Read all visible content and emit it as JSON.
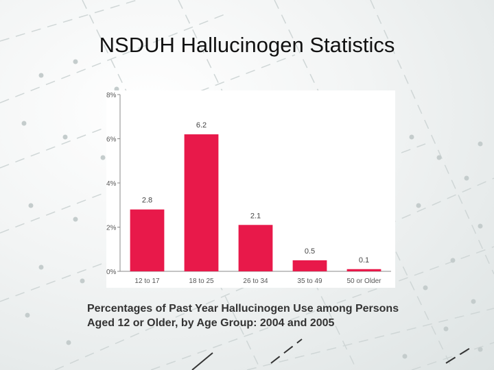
{
  "slide": {
    "title": "NSDUH Hallucinogen Statistics",
    "caption_line1": "Percentages of Past Year Hallucinogen Use among Persons",
    "caption_line2": "Aged 12 or Older, by Age Group: 2004 and 2005"
  },
  "colors": {
    "bar": "#e8194a",
    "axis": "#888888",
    "tick_text": "#555555"
  },
  "chart_data": {
    "type": "bar",
    "categories": [
      "12 to 17",
      "18 to 25",
      "26 to 34",
      "35 to 49",
      "50 or Older"
    ],
    "values": [
      2.8,
      6.2,
      2.1,
      0.5,
      0.1
    ],
    "data_labels": [
      "2.8",
      "6.2",
      "2.1",
      "0.5",
      "0.1"
    ],
    "y_ticks": [
      0,
      2,
      4,
      6,
      8
    ],
    "y_tick_labels": [
      "0%",
      "2%",
      "4%",
      "6%",
      "8%"
    ],
    "ylim": [
      0,
      8
    ],
    "grid": false
  }
}
